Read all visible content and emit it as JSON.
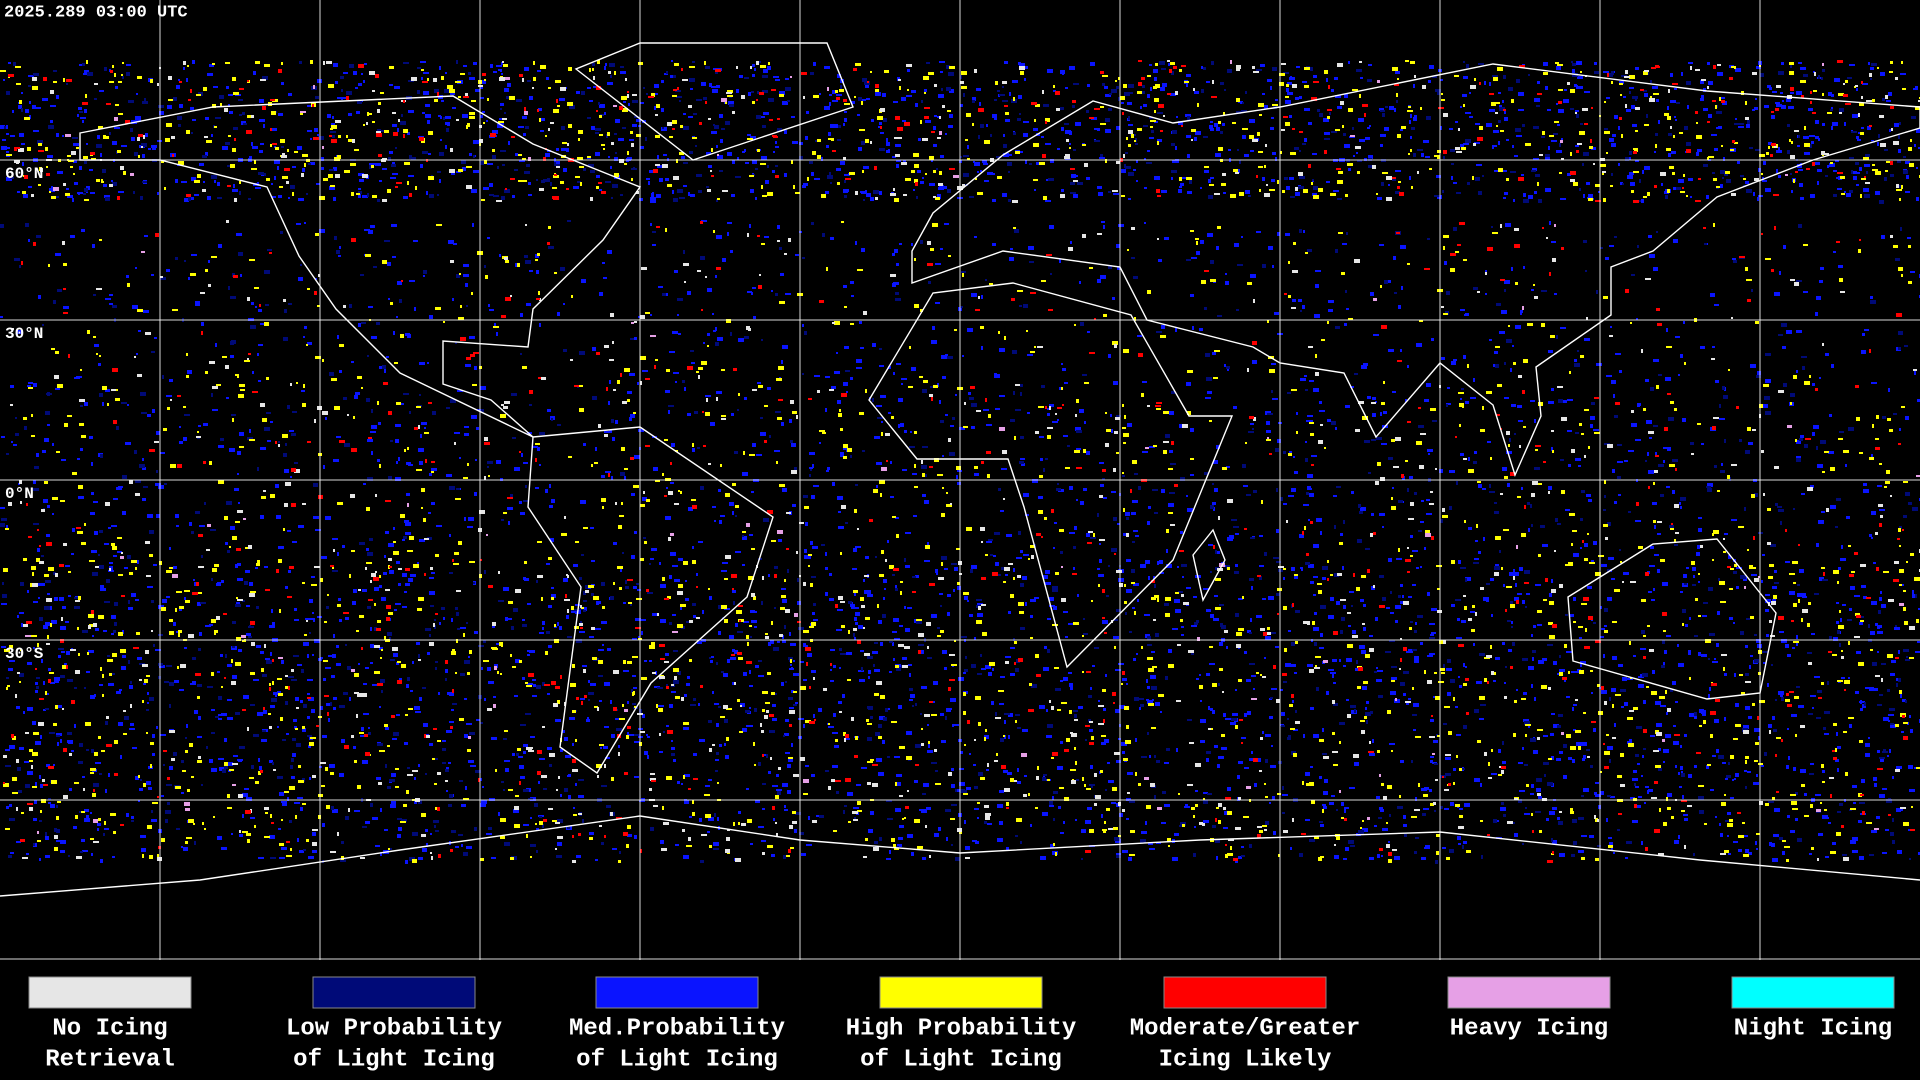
{
  "timestamp": "2025.289 03:00 UTC",
  "latitude_labels": [
    "60°N",
    "30°N",
    "0°N",
    "30°S"
  ],
  "legend": [
    {
      "label": [
        "No Icing",
        "Retrieval"
      ],
      "color": "#e6e6e6"
    },
    {
      "label": [
        "Low Probability",
        "of Light Icing"
      ],
      "color": "#000a78"
    },
    {
      "label": [
        "Med.Probability",
        "of Light Icing"
      ],
      "color": "#0a14ff"
    },
    {
      "label": [
        "High Probability",
        "of Light Icing"
      ],
      "color": "#ffff00"
    },
    {
      "label": [
        "Moderate/Greater",
        "Icing Likely"
      ],
      "color": "#ff0000"
    },
    {
      "label": [
        "Heavy Icing"
      ],
      "color": "#e6a0e6"
    },
    {
      "label": [
        "Night Icing"
      ],
      "color": "#00ffff"
    }
  ]
}
